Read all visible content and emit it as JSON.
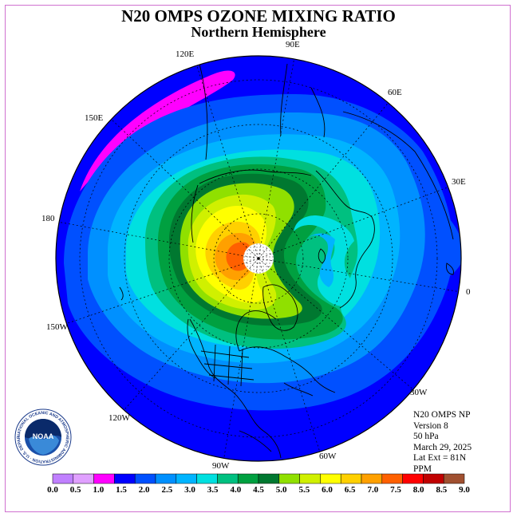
{
  "title": "N20 OMPS OZONE MIXING RATIO",
  "subtitle": "Northern Hemisphere",
  "longitude_labels": [
    "90E",
    "60E",
    "30E",
    "0",
    "30W",
    "60W",
    "90W",
    "120W",
    "150W",
    "180",
    "150E",
    "120E"
  ],
  "info": {
    "line1": "N20 OMPS NP",
    "line2": "Version 8",
    "line3": "50 hPa",
    "line4": "March 29, 2025",
    "line5": "Lat Ext = 81N",
    "line6": "PPM"
  },
  "legend": {
    "ticks": [
      "0.0",
      "0.5",
      "1.0",
      "1.5",
      "2.0",
      "2.5",
      "3.0",
      "3.5",
      "4.0",
      "4.5",
      "5.0",
      "5.5",
      "6.0",
      "6.5",
      "7.0",
      "7.5",
      "8.0",
      "8.5",
      "9.0"
    ],
    "colors": [
      "#c080ff",
      "#e0a0ff",
      "#ff00ff",
      "#0000ff",
      "#0050ff",
      "#0090ff",
      "#00b4ff",
      "#00e0e0",
      "#00c080",
      "#00a040",
      "#007830",
      "#90e000",
      "#d0f000",
      "#ffff00",
      "#ffd000",
      "#ffa000",
      "#ff6000",
      "#ff0000",
      "#c00000",
      "#a05030"
    ]
  },
  "logo": {
    "text": "NOAA",
    "ring_text": "NATIONAL OCEANIC AND ATMOSPHERIC ADMINISTRATION · U.S. DEPARTMENT OF COMMERCE"
  }
}
